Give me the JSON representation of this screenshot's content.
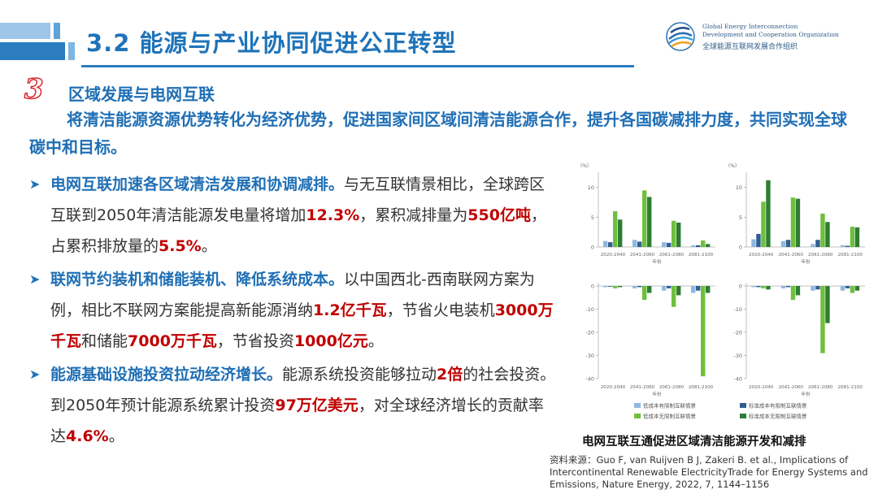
{
  "header": {
    "title": "3.2 能源与产业协同促进公正转型",
    "logo_en_line1": "Global Energy Interconnection",
    "logo_en_line2": "Development and Cooperation Organization",
    "logo_cn": "全球能源互联网发展合作组织"
  },
  "section": {
    "number": "3",
    "subtitle": "区域发展与电网互联",
    "lead": "将清洁能源资源优势转化为经济优势，促进国家间区域间清洁能源合作，提升各国碳减排力度，共同实现全球碳中和目标。"
  },
  "bullets": [
    {
      "parts": [
        {
          "t": "电网互联加速各区域清洁发展和协调减排。",
          "s": "head"
        },
        {
          "t": "与无互联情景相比，全球跨区互联到2050年清洁能源发电量将增加",
          "s": ""
        },
        {
          "t": "12.3%",
          "s": "hl"
        },
        {
          "t": "，累积减排量为",
          "s": ""
        },
        {
          "t": "550亿吨",
          "s": "hl"
        },
        {
          "t": "，占累积排放量的",
          "s": ""
        },
        {
          "t": "5.5%",
          "s": "hl"
        },
        {
          "t": "。",
          "s": ""
        }
      ]
    },
    {
      "parts": [
        {
          "t": "联网节约装机和储能装机、降低系统成本。",
          "s": "head"
        },
        {
          "t": "以中国西北-西南联网方案为例，相比不联网方案能提高新能源消纳",
          "s": ""
        },
        {
          "t": "1.2亿千瓦",
          "s": "hl"
        },
        {
          "t": "，节省火电装机",
          "s": ""
        },
        {
          "t": "3000万千瓦",
          "s": "hl"
        },
        {
          "t": "和储能",
          "s": ""
        },
        {
          "t": "7000万千瓦",
          "s": "hl"
        },
        {
          "t": "，节省投资",
          "s": ""
        },
        {
          "t": "1000亿元",
          "s": "hl"
        },
        {
          "t": "。",
          "s": ""
        }
      ]
    },
    {
      "parts": [
        {
          "t": "能源基础设施投资拉动经济增长。",
          "s": "head"
        },
        {
          "t": "能源系统投资能够拉动",
          "s": ""
        },
        {
          "t": "2倍",
          "s": "hl"
        },
        {
          "t": "的社会投资。到2050年预计能源系统累计投资",
          "s": ""
        },
        {
          "t": "97万亿美元",
          "s": "hl"
        },
        {
          "t": "，对全球经济增长的贡献率达",
          "s": ""
        },
        {
          "t": "4.6%",
          "s": "hl"
        },
        {
          "t": "。",
          "s": ""
        }
      ]
    }
  ],
  "chart_caption": "电网互联互通促进区域清洁能源开发和减排",
  "source": "资料来源：Guo F, van Ruijven B J, Zakeri B. et al., Implications of Intercontinental Renewable ElectricityTrade for Energy Systems and Emissions, Nature Energy, 2022, 7, 1144–1156",
  "colors": {
    "title": "#1f73b8",
    "highlight": "#c00000",
    "light_blue": "#8fb8e0",
    "dark_blue": "#2f5f8f",
    "light_green": "#6fbf3e",
    "dark_green": "#2e7d32"
  },
  "chart_data": [
    {
      "type": "bar",
      "categories": [
        "2020-2040",
        "2041-2060",
        "2061-2080",
        "2081-2100"
      ],
      "ylim": [
        0,
        12
      ],
      "yticks": [
        0,
        5,
        10
      ],
      "ylabel": "（%）",
      "xlabel": "年份",
      "series": [
        {
          "key": "lb",
          "values": [
            1,
            1.2,
            0.8,
            0.3
          ]
        },
        {
          "key": "db",
          "values": [
            0.8,
            0.9,
            0.7,
            0.3
          ]
        },
        {
          "key": "lg",
          "values": [
            6,
            9.5,
            4.4,
            1.1
          ]
        },
        {
          "key": "dg",
          "values": [
            4.6,
            8.4,
            4.1,
            0.5
          ]
        }
      ]
    },
    {
      "type": "bar",
      "categories": [
        "2020-2040",
        "2041-2060",
        "2061-2080",
        "2081-2100"
      ],
      "ylim": [
        0,
        12
      ],
      "yticks": [
        0,
        5,
        10
      ],
      "ylabel": "（%）",
      "xlabel": "年份",
      "series": [
        {
          "key": "lb",
          "values": [
            1.3,
            1,
            0.5,
            0.3
          ]
        },
        {
          "key": "db",
          "values": [
            2.2,
            1.2,
            1.2,
            0.2
          ]
        },
        {
          "key": "lg",
          "values": [
            7.6,
            8.3,
            5.6,
            3.4
          ]
        },
        {
          "key": "dg",
          "values": [
            11.2,
            8.1,
            4.2,
            3.3
          ]
        }
      ]
    },
    {
      "type": "bar",
      "categories": [
        "2020-2040",
        "2041-2060",
        "2061-2080",
        "2081-2100"
      ],
      "ylim": [
        -40,
        0
      ],
      "yticks": [
        0,
        -10,
        -20,
        -30,
        -40
      ],
      "xlabel": "年份",
      "series": [
        {
          "key": "lb",
          "values": [
            -0.5,
            -1,
            -2,
            -3
          ]
        },
        {
          "key": "db",
          "values": [
            -0.3,
            -0.5,
            -1,
            -2
          ]
        },
        {
          "key": "lg",
          "values": [
            -1,
            -6,
            -9,
            -39
          ]
        },
        {
          "key": "dg",
          "values": [
            -0.5,
            -3,
            -4,
            -3
          ]
        }
      ]
    },
    {
      "type": "bar",
      "categories": [
        "2020-2040",
        "2041-2060",
        "2061-2080",
        "2081-2100"
      ],
      "ylim": [
        -40,
        0
      ],
      "yticks": [
        0,
        -10,
        -20,
        -30,
        -40
      ],
      "xlabel": "年份",
      "series": [
        {
          "key": "lb",
          "values": [
            -0.5,
            -1,
            -2,
            -2
          ]
        },
        {
          "key": "db",
          "values": [
            -0.5,
            -0.5,
            -1.5,
            -1
          ]
        },
        {
          "key": "lg",
          "values": [
            -1,
            -6,
            -29,
            -3
          ]
        },
        {
          "key": "dg",
          "values": [
            -1.5,
            -4,
            -16,
            -2
          ]
        }
      ]
    }
  ],
  "legend": [
    {
      "key": "lb",
      "label": "低成本有限制互联情景",
      "color": "#8fb8e0"
    },
    {
      "key": "db",
      "label": "标准成本有限制互联情景",
      "color": "#2f5f8f"
    },
    {
      "key": "lg",
      "label": "低成本无限制互联情景",
      "color": "#6fbf3e"
    },
    {
      "key": "dg",
      "label": "标准成本无限制互联情景",
      "color": "#2e7d32"
    }
  ]
}
